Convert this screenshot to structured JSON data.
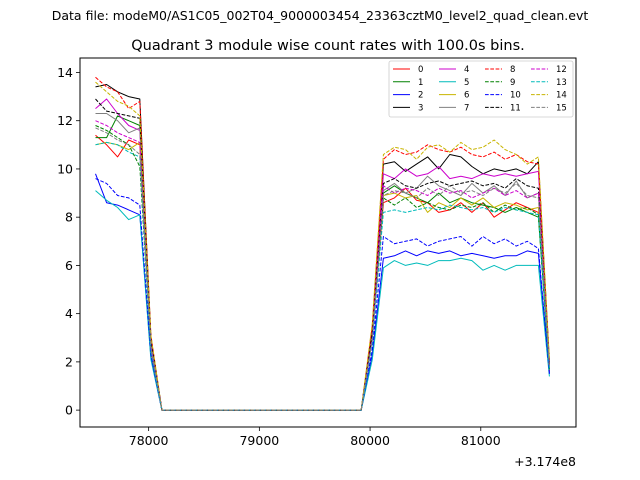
{
  "suptitle": "Data file: modeM0/AS1C05_002T04_9000003454_23363cztM0_level2_quad_clean.evt",
  "chart_data": {
    "type": "line",
    "title": "Quadrant 3 module wise count rates with 100.0s bins.",
    "xlabel": "",
    "ylabel": "",
    "x_offset_label": "+3.174e8",
    "xlim": [
      77380,
      81860
    ],
    "ylim": [
      -0.7,
      14.6
    ],
    "xticks": [
      78000,
      79000,
      80000,
      81000
    ],
    "xtick_labels": [
      "78000",
      "79000",
      "80000",
      "81000"
    ],
    "yticks": [
      0,
      2,
      4,
      6,
      8,
      10,
      12,
      14
    ],
    "ytick_labels": [
      "0",
      "2",
      "4",
      "6",
      "8",
      "10",
      "12",
      "14"
    ],
    "grid": false,
    "legend_position": "top-right",
    "x": [
      77520,
      77620,
      77720,
      77820,
      77920,
      78020,
      78120,
      78220,
      78320,
      78420,
      78520,
      78620,
      78720,
      78820,
      78920,
      79020,
      79120,
      79220,
      79320,
      79420,
      79520,
      79620,
      79720,
      79820,
      79920,
      80020,
      80120,
      80220,
      80320,
      80420,
      80520,
      80620,
      80720,
      80820,
      80920,
      81020,
      81120,
      81220,
      81320,
      81420,
      81520,
      81620
    ],
    "series": [
      {
        "name": "0",
        "color": "#ff0000",
        "dash": false,
        "values": [
          11.4,
          11.0,
          10.5,
          11.2,
          11.0,
          2.5,
          0,
          0,
          0,
          0,
          0,
          0,
          0,
          0,
          0,
          0,
          0,
          0,
          0,
          0,
          0,
          0,
          0,
          0,
          0,
          3.0,
          8.6,
          8.8,
          9.2,
          8.7,
          8.6,
          8.2,
          8.3,
          8.6,
          8.2,
          8.6,
          8.0,
          8.3,
          8.6,
          8.4,
          8.2,
          1.6
        ]
      },
      {
        "name": "1",
        "color": "#008000",
        "dash": false,
        "values": [
          11.3,
          11.3,
          12.2,
          12.0,
          11.8,
          2.7,
          0,
          0,
          0,
          0,
          0,
          0,
          0,
          0,
          0,
          0,
          0,
          0,
          0,
          0,
          0,
          0,
          0,
          0,
          0,
          3.2,
          9.0,
          9.3,
          9.0,
          8.8,
          8.6,
          9.0,
          8.6,
          8.8,
          8.6,
          8.5,
          8.4,
          8.2,
          8.4,
          8.2,
          8.0,
          1.7
        ]
      },
      {
        "name": "2",
        "color": "#0000ff",
        "dash": false,
        "values": [
          9.8,
          8.6,
          8.5,
          8.3,
          8.1,
          2.2,
          0,
          0,
          0,
          0,
          0,
          0,
          0,
          0,
          0,
          0,
          0,
          0,
          0,
          0,
          0,
          0,
          0,
          0,
          0,
          2.3,
          6.3,
          6.4,
          6.6,
          6.4,
          6.6,
          6.5,
          6.6,
          6.4,
          6.5,
          6.4,
          6.3,
          6.4,
          6.4,
          6.6,
          6.5,
          1.5
        ]
      },
      {
        "name": "3",
        "color": "#000000",
        "dash": false,
        "values": [
          13.4,
          13.5,
          13.2,
          13.0,
          12.9,
          3.0,
          0,
          0,
          0,
          0,
          0,
          0,
          0,
          0,
          0,
          0,
          0,
          0,
          0,
          0,
          0,
          0,
          0,
          0,
          0,
          3.4,
          10.2,
          10.3,
          9.9,
          10.2,
          10.5,
          10.0,
          10.6,
          10.5,
          10.1,
          9.8,
          10.0,
          9.9,
          10.0,
          9.8,
          10.3,
          2.0
        ]
      },
      {
        "name": "4",
        "color": "#cc00cc",
        "dash": false,
        "values": [
          12.5,
          12.9,
          12.3,
          11.8,
          11.6,
          2.9,
          0,
          0,
          0,
          0,
          0,
          0,
          0,
          0,
          0,
          0,
          0,
          0,
          0,
          0,
          0,
          0,
          0,
          0,
          0,
          3.2,
          9.8,
          9.6,
          10.0,
          9.7,
          9.8,
          10.1,
          9.6,
          9.7,
          9.6,
          9.8,
          9.7,
          9.8,
          9.7,
          9.8,
          9.9,
          1.9
        ]
      },
      {
        "name": "5",
        "color": "#00bbbb",
        "dash": false,
        "values": [
          9.1,
          8.7,
          8.4,
          7.9,
          8.1,
          2.1,
          0,
          0,
          0,
          0,
          0,
          0,
          0,
          0,
          0,
          0,
          0,
          0,
          0,
          0,
          0,
          0,
          0,
          0,
          0,
          2.1,
          5.9,
          6.2,
          6.0,
          6.1,
          6.0,
          6.2,
          6.2,
          6.3,
          6.2,
          5.8,
          6.0,
          5.8,
          6.0,
          6.0,
          6.0,
          1.4
        ]
      },
      {
        "name": "6",
        "color": "#c8b400",
        "dash": false,
        "values": [
          11.0,
          11.1,
          11.0,
          10.8,
          11.1,
          2.6,
          0,
          0,
          0,
          0,
          0,
          0,
          0,
          0,
          0,
          0,
          0,
          0,
          0,
          0,
          0,
          0,
          0,
          0,
          0,
          3.0,
          8.9,
          9.0,
          8.8,
          8.9,
          8.2,
          8.6,
          8.4,
          8.8,
          8.5,
          8.8,
          8.4,
          8.6,
          8.5,
          8.3,
          8.4,
          1.8
        ]
      },
      {
        "name": "7",
        "color": "#808080",
        "dash": false,
        "values": [
          12.3,
          12.3,
          12.0,
          11.5,
          11.7,
          2.8,
          0,
          0,
          0,
          0,
          0,
          0,
          0,
          0,
          0,
          0,
          0,
          0,
          0,
          0,
          0,
          0,
          0,
          0,
          0,
          3.1,
          9.1,
          9.4,
          9.0,
          9.2,
          9.7,
          9.3,
          9.1,
          8.9,
          9.4,
          9.0,
          9.3,
          8.9,
          9.5,
          8.8,
          9.0,
          1.9
        ]
      },
      {
        "name": "8",
        "color": "#ff0000",
        "dash": true,
        "values": [
          13.8,
          13.4,
          13.2,
          12.5,
          12.8,
          3.1,
          0,
          0,
          0,
          0,
          0,
          0,
          0,
          0,
          0,
          0,
          0,
          0,
          0,
          0,
          0,
          0,
          0,
          0,
          0,
          3.5,
          10.4,
          10.8,
          10.6,
          10.7,
          11.0,
          10.8,
          10.7,
          10.9,
          10.6,
          10.5,
          10.7,
          10.4,
          10.6,
          10.3,
          10.2,
          2.0
        ]
      },
      {
        "name": "9",
        "color": "#008000",
        "dash": true,
        "values": [
          11.8,
          11.6,
          11.3,
          11.0,
          10.1,
          2.5,
          0,
          0,
          0,
          0,
          0,
          0,
          0,
          0,
          0,
          0,
          0,
          0,
          0,
          0,
          0,
          0,
          0,
          0,
          0,
          2.9,
          8.8,
          8.5,
          8.8,
          8.4,
          8.6,
          8.4,
          8.3,
          8.5,
          8.4,
          8.6,
          8.2,
          8.5,
          8.3,
          8.4,
          8.1,
          1.7
        ]
      },
      {
        "name": "10",
        "color": "#0000ff",
        "dash": true,
        "values": [
          9.6,
          9.4,
          8.9,
          8.8,
          8.5,
          2.3,
          0,
          0,
          0,
          0,
          0,
          0,
          0,
          0,
          0,
          0,
          0,
          0,
          0,
          0,
          0,
          0,
          0,
          0,
          0,
          2.5,
          7.2,
          6.9,
          7.0,
          7.1,
          6.8,
          7.0,
          7.1,
          7.2,
          6.8,
          7.2,
          6.9,
          7.1,
          6.8,
          7.0,
          6.7,
          1.5
        ]
      },
      {
        "name": "11",
        "color": "#000000",
        "dash": true,
        "values": [
          12.9,
          12.4,
          12.3,
          12.2,
          12.1,
          2.9,
          0,
          0,
          0,
          0,
          0,
          0,
          0,
          0,
          0,
          0,
          0,
          0,
          0,
          0,
          0,
          0,
          0,
          0,
          0,
          3.2,
          9.4,
          9.6,
          9.3,
          9.2,
          9.4,
          9.5,
          9.3,
          9.4,
          9.5,
          9.3,
          9.4,
          9.2,
          9.6,
          9.3,
          9.2,
          1.9
        ]
      },
      {
        "name": "12",
        "color": "#cc00cc",
        "dash": true,
        "values": [
          12.0,
          11.8,
          11.5,
          11.3,
          11.1,
          2.7,
          0,
          0,
          0,
          0,
          0,
          0,
          0,
          0,
          0,
          0,
          0,
          0,
          0,
          0,
          0,
          0,
          0,
          0,
          0,
          3.0,
          9.3,
          9.0,
          9.2,
          9.1,
          8.9,
          9.2,
          9.0,
          9.1,
          8.8,
          9.0,
          9.2,
          8.9,
          9.1,
          8.8,
          9.0,
          1.8
        ]
      },
      {
        "name": "13",
        "color": "#00bbbb",
        "dash": true,
        "values": [
          11.0,
          11.1,
          11.0,
          10.7,
          10.5,
          2.5,
          0,
          0,
          0,
          0,
          0,
          0,
          0,
          0,
          0,
          0,
          0,
          0,
          0,
          0,
          0,
          0,
          0,
          0,
          0,
          2.8,
          8.2,
          8.3,
          8.2,
          8.3,
          8.4,
          8.3,
          8.5,
          8.4,
          8.3,
          8.4,
          8.2,
          8.4,
          8.3,
          8.2,
          8.1,
          1.7
        ]
      },
      {
        "name": "14",
        "color": "#c8b400",
        "dash": true,
        "values": [
          13.6,
          13.2,
          12.8,
          12.6,
          12.2,
          3.1,
          0,
          0,
          0,
          0,
          0,
          0,
          0,
          0,
          0,
          0,
          0,
          0,
          0,
          0,
          0,
          0,
          0,
          0,
          0,
          3.6,
          10.6,
          10.9,
          10.8,
          10.4,
          10.9,
          11.0,
          10.7,
          11.1,
          10.8,
          10.9,
          11.2,
          10.8,
          10.6,
          10.2,
          10.5,
          2.1
        ]
      },
      {
        "name": "15",
        "color": "#808080",
        "dash": true,
        "values": [
          11.7,
          11.5,
          11.2,
          11.0,
          10.6,
          2.6,
          0,
          0,
          0,
          0,
          0,
          0,
          0,
          0,
          0,
          0,
          0,
          0,
          0,
          0,
          0,
          0,
          0,
          0,
          0,
          2.9,
          8.9,
          9.1,
          9.0,
          8.8,
          9.2,
          8.9,
          9.3,
          9.0,
          9.1,
          8.9,
          9.2,
          9.0,
          9.4,
          8.9,
          8.8,
          1.8
        ]
      }
    ]
  }
}
